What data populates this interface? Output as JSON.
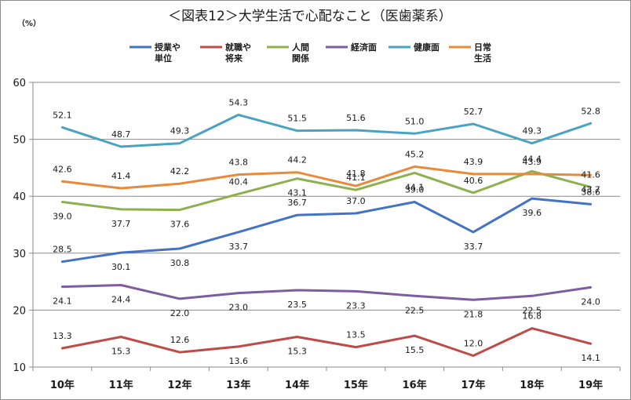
{
  "chart_data": {
    "type": "line",
    "title": "＜図表12＞大学生活で心配なこと（医歯薬系）",
    "unit": "（%）",
    "categories": [
      "10年",
      "11年",
      "12年",
      "13年",
      "14年",
      "15年",
      "16年",
      "17年",
      "18年",
      "19年"
    ],
    "ylim": [
      10,
      60
    ],
    "yticks": [
      10,
      20,
      30,
      40,
      50,
      60
    ],
    "grid": true,
    "legend_position": "top",
    "series": [
      {
        "name": "授業や単位",
        "legend_lines": [
          "授業や",
          "単位"
        ],
        "color": "#4472c4",
        "values": [
          28.5,
          30.1,
          30.8,
          33.7,
          36.7,
          37.0,
          39.0,
          33.7,
          39.6,
          38.6
        ]
      },
      {
        "name": "就職や将来",
        "legend_lines": [
          "就職や",
          "将来"
        ],
        "color": "#be4b48",
        "values": [
          13.3,
          15.3,
          12.6,
          13.6,
          15.3,
          13.5,
          15.5,
          12.0,
          16.8,
          14.1
        ]
      },
      {
        "name": "人間関係",
        "legend_lines": [
          "人間",
          "関係"
        ],
        "color": "#8eb04e",
        "values": [
          39.0,
          37.7,
          37.6,
          40.4,
          43.1,
          41.1,
          44.1,
          40.6,
          44.4,
          41.6
        ]
      },
      {
        "name": "経済面",
        "legend_lines": [
          "経済面"
        ],
        "color": "#7d5da0",
        "values": [
          24.1,
          24.4,
          22.0,
          23.0,
          23.5,
          23.3,
          22.5,
          21.8,
          22.5,
          24.0
        ]
      },
      {
        "name": "健康面",
        "legend_lines": [
          "健康面"
        ],
        "color": "#4aa3c0",
        "values": [
          52.1,
          48.7,
          49.3,
          54.3,
          51.5,
          51.6,
          51.0,
          52.7,
          49.3,
          52.8
        ]
      },
      {
        "name": "日常生活",
        "legend_lines": [
          "日常",
          "生活"
        ],
        "color": "#e9893a",
        "values": [
          42.6,
          41.4,
          42.2,
          43.8,
          44.2,
          41.8,
          45.2,
          43.9,
          43.9,
          43.7
        ]
      }
    ]
  }
}
